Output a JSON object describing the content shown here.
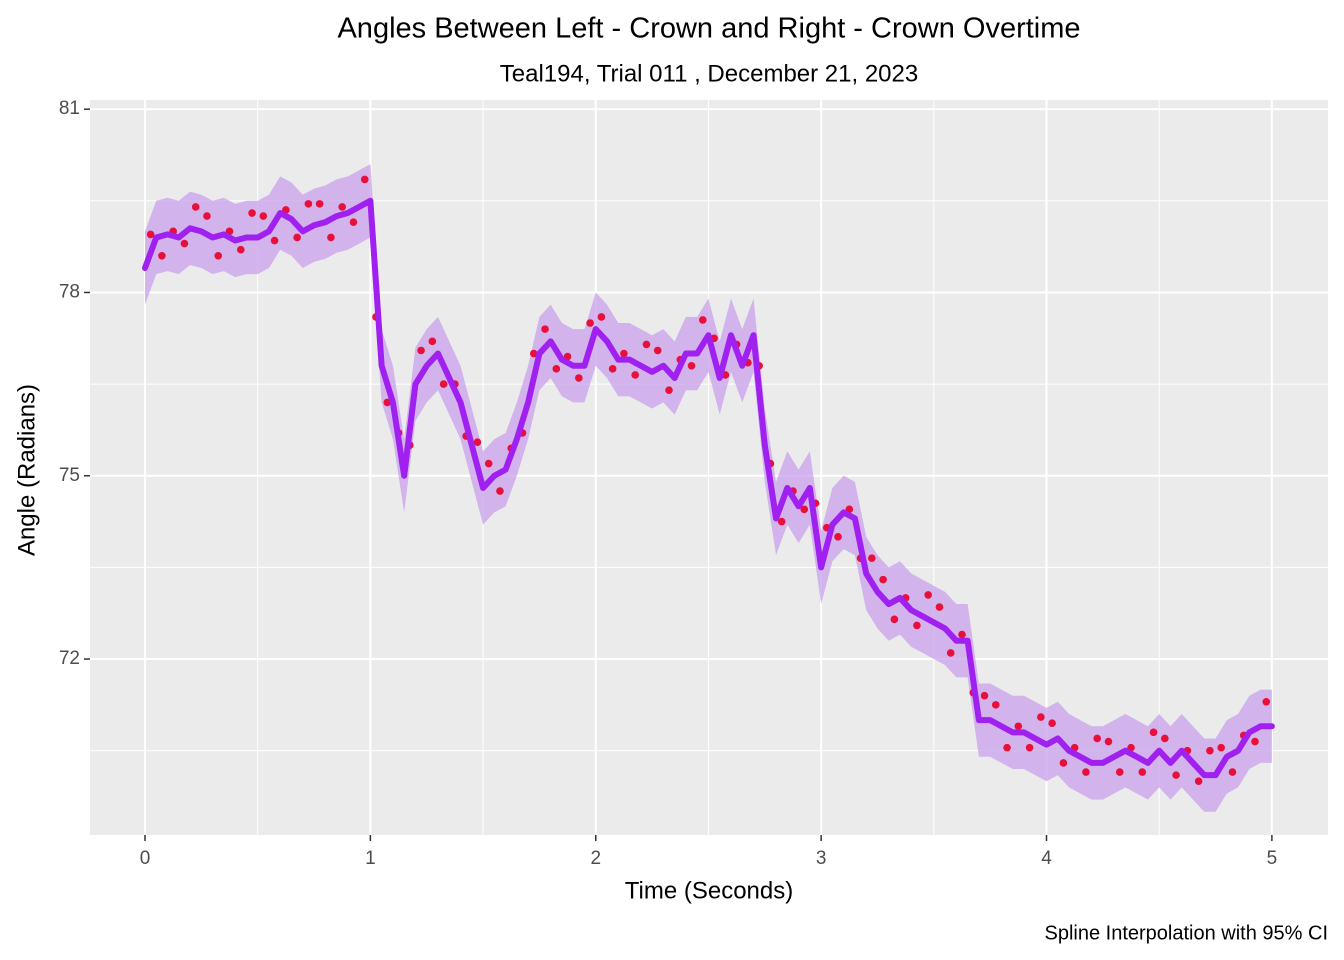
{
  "chart_data": {
    "type": "scatter-spline",
    "title": "Angles Between Left - Crown and Right - Crown Overtime",
    "subtitle": "Teal194, Trial 011 , December 21, 2023",
    "x_label": "Time (Seconds)",
    "y_label": "Angle (Radians)",
    "caption": "Spline Interpolation with 95% CI",
    "xlim": [
      -0.244,
      5.249
    ],
    "ylim": [
      69.12,
      81.15
    ],
    "xticks": [
      0,
      1,
      2,
      3,
      4,
      5
    ],
    "yticks": [
      72,
      75,
      78,
      81
    ],
    "grid": true,
    "points": {
      "color": "#e8103a",
      "x": [
        0.025,
        0.075,
        0.125,
        0.175,
        0.225,
        0.275,
        0.325,
        0.375,
        0.425,
        0.475,
        0.525,
        0.575,
        0.625,
        0.675,
        0.725,
        0.775,
        0.825,
        0.875,
        0.925,
        0.975,
        1.025,
        1.075,
        1.125,
        1.175,
        1.225,
        1.275,
        1.325,
        1.375,
        1.425,
        1.475,
        1.525,
        1.575,
        1.625,
        1.675,
        1.725,
        1.775,
        1.825,
        1.875,
        1.925,
        1.975,
        2.025,
        2.075,
        2.125,
        2.175,
        2.225,
        2.275,
        2.325,
        2.375,
        2.425,
        2.475,
        2.525,
        2.575,
        2.625,
        2.675,
        2.725,
        2.775,
        2.825,
        2.875,
        2.925,
        2.975,
        3.025,
        3.075,
        3.125,
        3.175,
        3.225,
        3.275,
        3.325,
        3.375,
        3.425,
        3.475,
        3.525,
        3.575,
        3.625,
        3.675,
        3.725,
        3.775,
        3.825,
        3.875,
        3.925,
        3.975,
        4.025,
        4.075,
        4.125,
        4.175,
        4.225,
        4.275,
        4.325,
        4.375,
        4.425,
        4.475,
        4.525,
        4.575,
        4.625,
        4.675,
        4.725,
        4.775,
        4.825,
        4.875,
        4.925,
        4.975
      ],
      "y": [
        78.95,
        78.6,
        79.0,
        78.8,
        79.4,
        79.25,
        78.6,
        79.0,
        78.7,
        79.3,
        79.25,
        78.85,
        79.35,
        78.9,
        79.45,
        79.45,
        78.9,
        79.4,
        79.15,
        79.85,
        77.6,
        76.2,
        75.7,
        75.5,
        77.05,
        77.2,
        76.5,
        76.5,
        75.65,
        75.55,
        75.2,
        74.75,
        75.45,
        75.7,
        77.0,
        77.4,
        76.75,
        76.95,
        76.6,
        77.5,
        77.6,
        76.75,
        77.0,
        76.65,
        77.15,
        77.05,
        76.4,
        76.9,
        76.8,
        77.55,
        77.25,
        76.65,
        77.15,
        76.85,
        76.8,
        75.2,
        74.25,
        74.75,
        74.45,
        74.55,
        74.15,
        74.0,
        74.45,
        73.65,
        73.65,
        73.3,
        72.65,
        73.0,
        72.55,
        73.05,
        72.85,
        72.1,
        72.4,
        71.45,
        71.4,
        71.25,
        70.55,
        70.9,
        70.55,
        71.05,
        70.95,
        70.3,
        70.55,
        70.15,
        70.7,
        70.65,
        70.15,
        70.55,
        70.15,
        70.8,
        70.7,
        70.1,
        70.5,
        70.0,
        70.5,
        70.55,
        70.15,
        70.75,
        70.65,
        71.3
      ]
    },
    "spline": {
      "color": "#a020f0",
      "band_color": "#c9a0ec",
      "x": [
        0,
        0.05,
        0.1,
        0.15,
        0.2,
        0.25,
        0.3,
        0.35,
        0.4,
        0.45,
        0.5,
        0.55,
        0.6,
        0.65,
        0.7,
        0.75,
        0.8,
        0.85,
        0.9,
        0.95,
        1,
        1.05,
        1.1,
        1.15,
        1.2,
        1.25,
        1.3,
        1.35,
        1.4,
        1.45,
        1.5,
        1.55,
        1.6,
        1.65,
        1.7,
        1.75,
        1.8,
        1.85,
        1.9,
        1.95,
        2,
        2.05,
        2.1,
        2.15,
        2.2,
        2.25,
        2.3,
        2.35,
        2.4,
        2.45,
        2.5,
        2.55,
        2.6,
        2.65,
        2.7,
        2.75,
        2.8,
        2.85,
        2.9,
        2.95,
        3,
        3.05,
        3.1,
        3.15,
        3.2,
        3.25,
        3.3,
        3.35,
        3.4,
        3.45,
        3.5,
        3.55,
        3.6,
        3.65,
        3.7,
        3.75,
        3.8,
        3.85,
        3.9,
        3.95,
        4,
        4.05,
        4.1,
        4.15,
        4.2,
        4.25,
        4.3,
        4.35,
        4.4,
        4.45,
        4.5,
        4.55,
        4.6,
        4.65,
        4.7,
        4.75,
        4.8,
        4.85,
        4.9,
        4.95,
        5
      ],
      "values": [
        78.4,
        78.9,
        78.95,
        78.9,
        79.05,
        79.0,
        78.9,
        78.95,
        78.85,
        78.9,
        78.9,
        79.0,
        79.3,
        79.2,
        79.0,
        79.1,
        79.15,
        79.25,
        79.3,
        79.4,
        79.5,
        76.8,
        76.2,
        75.0,
        76.5,
        76.8,
        77.0,
        76.6,
        76.2,
        75.5,
        74.8,
        75.0,
        75.1,
        75.6,
        76.2,
        77.0,
        77.2,
        76.9,
        76.8,
        76.8,
        77.4,
        77.2,
        76.9,
        76.9,
        76.8,
        76.7,
        76.8,
        76.6,
        77.0,
        77.0,
        77.3,
        76.6,
        77.3,
        76.8,
        77.3,
        75.5,
        74.3,
        74.8,
        74.5,
        74.8,
        73.5,
        74.2,
        74.4,
        74.3,
        73.4,
        73.1,
        72.9,
        73.0,
        72.8,
        72.7,
        72.6,
        72.5,
        72.3,
        72.3,
        71.0,
        71.0,
        70.9,
        70.8,
        70.8,
        70.7,
        70.6,
        70.7,
        70.5,
        70.4,
        70.3,
        70.3,
        70.4,
        70.5,
        70.4,
        70.3,
        70.5,
        70.3,
        70.5,
        70.3,
        70.1,
        70.1,
        70.4,
        70.5,
        70.8,
        70.9,
        70.9
      ],
      "upper": [
        79.0,
        79.5,
        79.55,
        79.5,
        79.65,
        79.6,
        79.5,
        79.55,
        79.45,
        79.5,
        79.5,
        79.6,
        79.9,
        79.8,
        79.6,
        79.7,
        79.75,
        79.85,
        79.9,
        80.0,
        80.1,
        77.4,
        76.8,
        75.6,
        77.1,
        77.4,
        77.6,
        77.2,
        76.8,
        76.1,
        75.4,
        75.6,
        75.7,
        76.2,
        76.8,
        77.6,
        77.8,
        77.5,
        77.4,
        77.4,
        78.0,
        77.8,
        77.5,
        77.5,
        77.4,
        77.3,
        77.4,
        77.2,
        77.6,
        77.6,
        77.9,
        77.2,
        77.9,
        77.4,
        77.9,
        76.1,
        74.9,
        75.4,
        75.1,
        75.4,
        74.1,
        74.8,
        75.0,
        74.9,
        74.0,
        73.7,
        73.5,
        73.6,
        73.4,
        73.3,
        73.2,
        73.1,
        72.9,
        72.9,
        71.6,
        71.6,
        71.5,
        71.4,
        71.4,
        71.3,
        71.2,
        71.3,
        71.1,
        71.0,
        70.9,
        70.9,
        71.0,
        71.1,
        71.0,
        70.9,
        71.1,
        70.9,
        71.1,
        70.9,
        70.7,
        70.7,
        71.0,
        71.1,
        71.4,
        71.5,
        71.5
      ],
      "lower": [
        77.8,
        78.3,
        78.35,
        78.3,
        78.45,
        78.4,
        78.3,
        78.35,
        78.25,
        78.3,
        78.3,
        78.4,
        78.7,
        78.6,
        78.4,
        78.5,
        78.55,
        78.65,
        78.7,
        78.8,
        78.9,
        76.2,
        75.6,
        74.4,
        75.9,
        76.2,
        76.4,
        76.0,
        75.6,
        74.9,
        74.2,
        74.4,
        74.5,
        75.0,
        75.6,
        76.4,
        76.6,
        76.3,
        76.2,
        76.2,
        76.8,
        76.6,
        76.3,
        76.3,
        76.2,
        76.1,
        76.2,
        76.0,
        76.4,
        76.4,
        76.7,
        76.0,
        76.7,
        76.2,
        76.7,
        74.9,
        73.7,
        74.2,
        73.9,
        74.2,
        72.9,
        73.6,
        73.8,
        73.7,
        72.8,
        72.5,
        72.3,
        72.4,
        72.2,
        72.1,
        72.0,
        71.9,
        71.7,
        71.7,
        70.4,
        70.4,
        70.3,
        70.2,
        70.2,
        70.1,
        70.0,
        70.1,
        69.9,
        69.8,
        69.7,
        69.7,
        69.8,
        69.9,
        69.8,
        69.7,
        69.9,
        69.7,
        69.9,
        69.7,
        69.5,
        69.5,
        69.8,
        69.9,
        70.2,
        70.3,
        70.3
      ]
    }
  }
}
